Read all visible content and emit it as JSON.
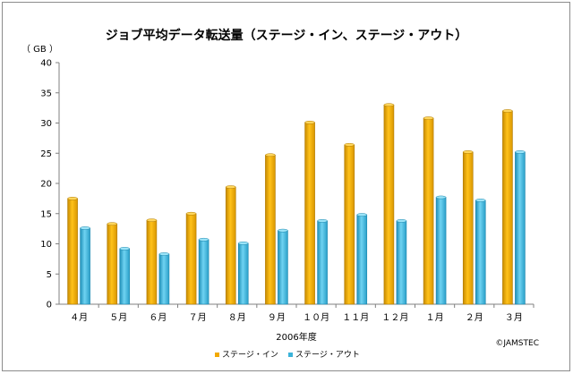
{
  "chart_data": {
    "type": "bar",
    "title": "ジョブ平均データ転送量（ステージ・イン、ステージ・アウト）",
    "unit_label": "（ GB ）",
    "xlabel": "2006年度",
    "ylabel": "",
    "ylim": [
      0,
      40
    ],
    "yticks": [
      0,
      5,
      10,
      15,
      20,
      25,
      30,
      35,
      40
    ],
    "categories": [
      "４月",
      "５月",
      "６月",
      "７月",
      "８月",
      "９月",
      "１０月",
      "１１月",
      "１２月",
      "１月",
      "２月",
      "３月"
    ],
    "series": [
      {
        "name": "ステージ・イン",
        "color": "#f2a900",
        "values": [
          17.5,
          13.3,
          13.9,
          15.0,
          19.4,
          24.7,
          30.1,
          26.4,
          33.0,
          30.8,
          25.2,
          32.0
        ]
      },
      {
        "name": "ステージ・アウト",
        "color": "#3bb3d9",
        "values": [
          12.6,
          9.2,
          8.3,
          10.7,
          10.1,
          12.2,
          13.8,
          14.8,
          13.8,
          17.7,
          17.2,
          25.2
        ]
      }
    ],
    "grid": false,
    "legend_position": "bottom"
  },
  "credit": "©JAMSTEC"
}
